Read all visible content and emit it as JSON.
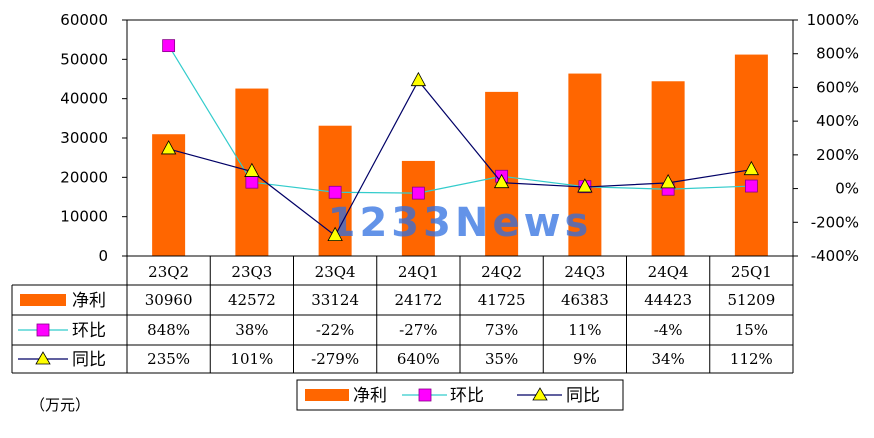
{
  "chart_data": {
    "type": "bar",
    "categories": [
      "23Q2",
      "23Q3",
      "23Q4",
      "24Q1",
      "24Q2",
      "24Q3",
      "24Q4",
      "25Q1"
    ],
    "series": [
      {
        "name": "净利",
        "kind": "bar",
        "axis": "left",
        "color": "#ff6600",
        "values": [
          30960,
          42572,
          33124,
          24172,
          41725,
          46383,
          44423,
          51209
        ],
        "labels": [
          "30960",
          "42572",
          "33124",
          "24172",
          "41725",
          "46383",
          "44423",
          "51209"
        ]
      },
      {
        "name": "环比",
        "kind": "line",
        "axis": "right",
        "color": "#33cccc",
        "marker": "square",
        "marker_color": "#ff00ff",
        "values": [
          848,
          38,
          -22,
          -27,
          73,
          11,
          -4,
          15
        ],
        "labels": [
          "848%",
          "38%",
          "-22%",
          "-27%",
          "73%",
          "11%",
          "-4%",
          "15%"
        ]
      },
      {
        "name": "同比",
        "kind": "line",
        "axis": "right",
        "color": "#000066",
        "marker": "triangle",
        "marker_color": "#ffff00",
        "values": [
          235,
          101,
          -279,
          640,
          35,
          9,
          34,
          112
        ],
        "labels": [
          "235%",
          "101%",
          "-279%",
          "640%",
          "35%",
          "9%",
          "34%",
          "112%"
        ]
      }
    ],
    "y_left": {
      "min": 0,
      "max": 60000,
      "ticks": [
        "0",
        "10000",
        "20000",
        "30000",
        "40000",
        "50000",
        "60000"
      ]
    },
    "y_right": {
      "min": -400,
      "max": 1000,
      "ticks": [
        "-400%",
        "-200%",
        "0%",
        "200%",
        "400%",
        "600%",
        "800%",
        "1000%"
      ]
    },
    "unit_label": "（万元）",
    "watermark": "1233News",
    "legend_position": "bottom",
    "grid": false
  }
}
